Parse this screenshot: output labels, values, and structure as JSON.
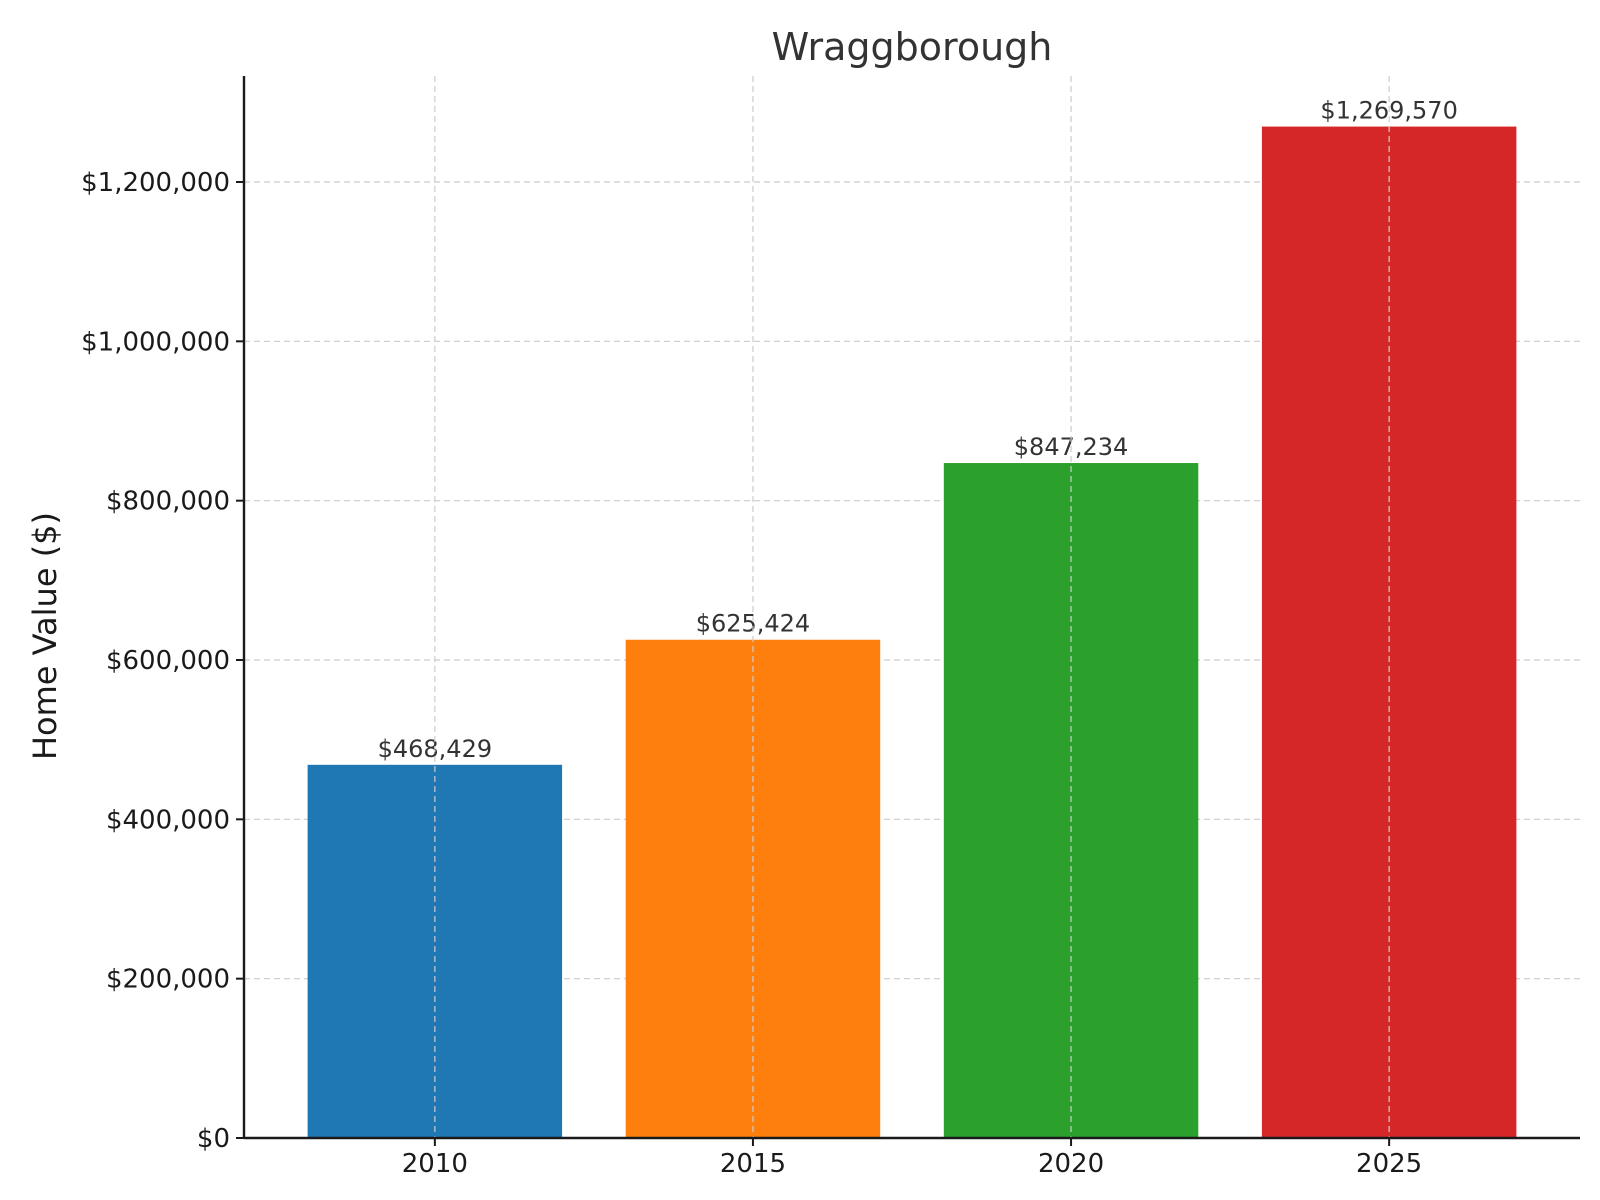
{
  "chart_data": {
    "type": "bar",
    "title": "Wraggborough",
    "xlabel": "",
    "ylabel": "Home Value ($)",
    "categories": [
      "2010",
      "2015",
      "2020",
      "2025"
    ],
    "values": [
      468429,
      625424,
      847234,
      1269570
    ],
    "value_labels": [
      "$468,429",
      "$625,424",
      "$847,234",
      "$1,269,570"
    ],
    "colors": [
      "#1f77b4",
      "#ff7f0e",
      "#2ca02c",
      "#d62728"
    ],
    "ylim": [
      0,
      1333048
    ],
    "yticks": [
      0,
      200000,
      400000,
      600000,
      800000,
      1000000,
      1200000
    ],
    "ytick_labels": [
      "$0",
      "$200,000",
      "$400,000",
      "$600,000",
      "$800,000",
      "$1,000,000",
      "$1,200,000"
    ],
    "grid": true
  }
}
